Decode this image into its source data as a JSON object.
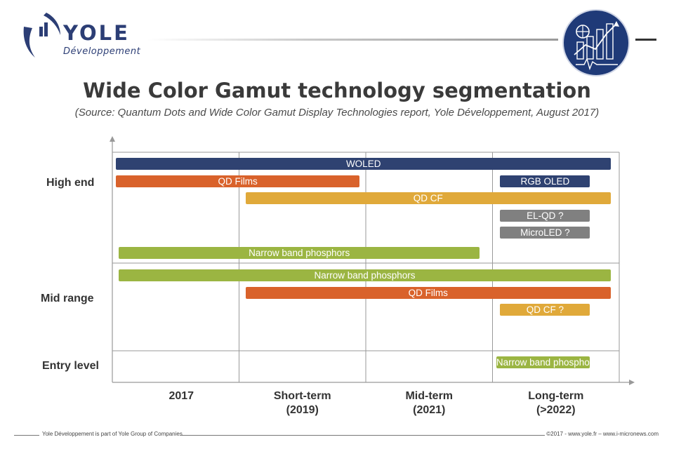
{
  "brand": {
    "name": "YOLE",
    "sub": "Développement"
  },
  "title": "Wide Color Gamut technology segmentation",
  "subtitle": "(Source: Quantum Dots and Wide Color Gamut Display Technologies report, Yole Développement, August 2017)",
  "footer": {
    "left": "Yole Développement is part of Yole Group of Companies",
    "right": "©2017 - www.yole.fr – www.i-micronews.com"
  },
  "colors": {
    "navy": "#2f4271",
    "orange": "#d9622b",
    "gold": "#e0a93a",
    "green": "#9bb542",
    "gray": "#808080",
    "grid": "#999999"
  },
  "chart_data": {
    "type": "timeline-gantt",
    "periods": [
      {
        "line1": "2017",
        "line2": ""
      },
      {
        "line1": "Short-term",
        "line2": "(2019)"
      },
      {
        "line1": "Mid-term",
        "line2": "(2021)"
      },
      {
        "line1": "Long-term",
        "line2": "(>2022)"
      }
    ],
    "segments": [
      "High end",
      "Mid range",
      "Entry level"
    ],
    "bars": [
      {
        "label": "WOLED",
        "segment": "High end",
        "lane": 0,
        "start": 0.03,
        "end": 4.0,
        "color": "navy"
      },
      {
        "label": "QD Films",
        "segment": "High end",
        "lane": 1,
        "start": 0.03,
        "end": 1.95,
        "color": "orange"
      },
      {
        "label": "RGB OLED",
        "segment": "High end",
        "lane": 1,
        "start": 3.06,
        "end": 3.77,
        "color": "navy"
      },
      {
        "label": "QD CF",
        "segment": "High end",
        "lane": 2,
        "start": 1.05,
        "end": 4.0,
        "color": "gold"
      },
      {
        "label": "EL-QD ?",
        "segment": "High end",
        "lane": 3,
        "start": 3.06,
        "end": 3.77,
        "color": "gray"
      },
      {
        "label": "MicroLED ?",
        "segment": "High end",
        "lane": 4,
        "start": 3.06,
        "end": 3.77,
        "color": "gray"
      },
      {
        "label": "Narrow band phosphors",
        "segment": "High end",
        "lane": 5,
        "start": 0.05,
        "end": 2.9,
        "color": "green"
      },
      {
        "label": "Narrow band phosphors",
        "segment": "Mid range",
        "lane": 0,
        "start": 0.05,
        "end": 4.0,
        "color": "green"
      },
      {
        "label": "QD Films",
        "segment": "Mid range",
        "lane": 1,
        "start": 1.05,
        "end": 4.0,
        "color": "orange"
      },
      {
        "label": "QD CF ?",
        "segment": "Mid range",
        "lane": 2,
        "start": 3.06,
        "end": 3.77,
        "color": "gold"
      },
      {
        "label": "Narrow band phosphors",
        "segment": "Entry level",
        "lane": 0,
        "start": 3.03,
        "end": 3.77,
        "color": "green"
      }
    ]
  }
}
